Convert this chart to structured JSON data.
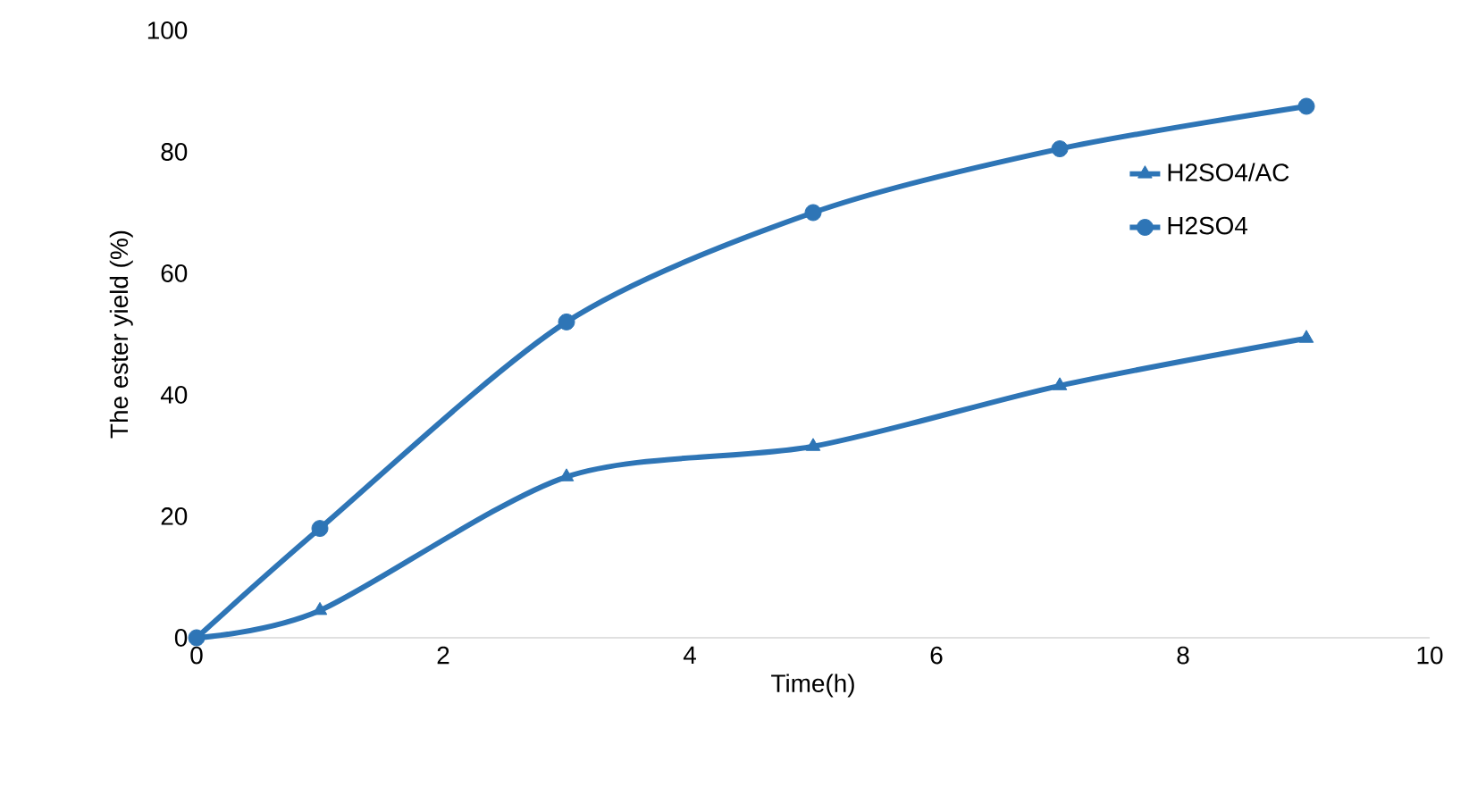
{
  "chart_data": {
    "type": "line",
    "xlabel": "Time(h)",
    "ylabel": "The ester yield (%)",
    "x": [
      0,
      1,
      3,
      5,
      7,
      9
    ],
    "series": [
      {
        "name": "H2SO4/AC",
        "color": "#2e75b6",
        "marker": "triangle",
        "values": [
          0,
          4.5,
          26.5,
          31.5,
          41.5,
          49.3
        ]
      },
      {
        "name": "H2SO4",
        "color": "#2e75b6",
        "marker": "circle",
        "values": [
          0,
          18,
          52,
          70,
          80.5,
          87.5
        ]
      }
    ],
    "xlim": [
      0,
      10
    ],
    "xticks": [
      0,
      2,
      4,
      6,
      8,
      10
    ],
    "ylim": [
      0,
      100
    ],
    "yticks": [
      0,
      20,
      40,
      60,
      80,
      100
    ],
    "grid": false,
    "legend": "right"
  }
}
